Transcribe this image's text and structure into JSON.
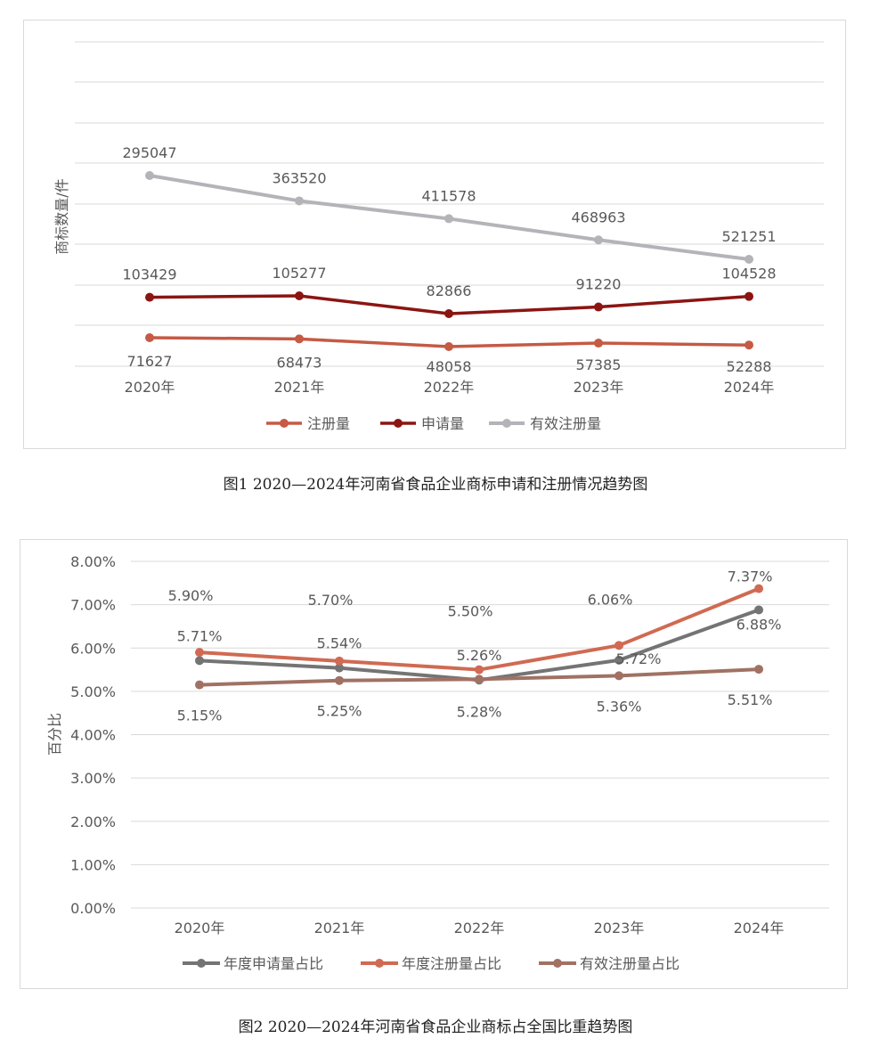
{
  "figure1": {
    "caption": "图1 2020—2024年河南省食品企业商标申请和注册情况趋势图",
    "chart_data": {
      "type": "line",
      "categories": [
        "2020年",
        "2021年",
        "2022年",
        "2023年",
        "2024年"
      ],
      "ylabel": "商标数量/件",
      "xlabel": "",
      "series": [
        {
          "name": "注册量",
          "color": "#c55a45",
          "values": [
            71627,
            68473,
            48058,
            57385,
            52288
          ]
        },
        {
          "name": "申请量",
          "color": "#8b1512",
          "values": [
            103429,
            105277,
            82866,
            91220,
            104528
          ]
        },
        {
          "name": "有效注册量",
          "color": "#b4b4b8",
          "values": [
            295047,
            363520,
            411578,
            468963,
            521251
          ]
        }
      ],
      "legend": "bottom",
      "grid": true
    }
  },
  "figure2": {
    "caption": "图2 2020—2024年河南省食品企业商标占全国比重趋势图",
    "chart_data": {
      "type": "line",
      "categories": [
        "2020年",
        "2021年",
        "2022年",
        "2023年",
        "2024年"
      ],
      "ylabel": "百分比",
      "xlabel": "",
      "ylim": [
        0,
        8
      ],
      "yticks": [
        "0.00%",
        "1.00%",
        "2.00%",
        "3.00%",
        "4.00%",
        "5.00%",
        "6.00%",
        "7.00%",
        "8.00%"
      ],
      "series": [
        {
          "name": "年度申请量占比",
          "color": "#747474",
          "values": [
            5.71,
            5.54,
            5.26,
            5.72,
            6.88
          ],
          "labels": [
            "5.71%",
            "5.54%",
            "5.26%",
            "5.72%",
            "6.88%"
          ]
        },
        {
          "name": "年度注册量占比",
          "color": "#d06a52",
          "values": [
            5.9,
            5.7,
            5.5,
            6.06,
            7.37
          ],
          "labels": [
            "5.90%",
            "5.70%",
            "5.50%",
            "6.06%",
            "7.37%"
          ]
        },
        {
          "name": "有效注册量占比",
          "color": "#a07264",
          "values": [
            5.15,
            5.25,
            5.28,
            5.36,
            5.51
          ],
          "labels": [
            "5.15%",
            "5.25%",
            "5.28%",
            "5.36%",
            "5.51%"
          ]
        }
      ],
      "legend": "bottom",
      "grid": true
    }
  }
}
